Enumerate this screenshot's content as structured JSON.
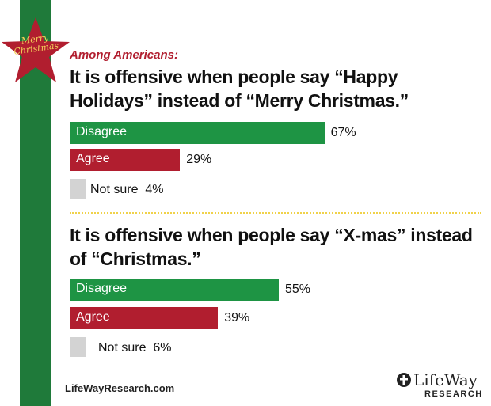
{
  "badge": {
    "line1": "Merry",
    "line2": "Christmas"
  },
  "subtitle": "Among Americans:",
  "colors": {
    "disagree": "#1e9444",
    "agree": "#b11e2f",
    "notsure": "#d3d3d3",
    "ribbon": "#1f7a3a",
    "star": "#b11e2f"
  },
  "chart_data": [
    {
      "type": "bar",
      "title": "It is offensive when people say “Happy Holidays” instead of “Merry Christmas.”",
      "categories": [
        "Disagree",
        "Agree",
        "Not sure"
      ],
      "values": [
        67,
        29,
        4
      ],
      "value_labels": [
        "67%",
        "29%",
        "4%"
      ],
      "unit": "%"
    },
    {
      "type": "bar",
      "title": "It is offensive when people say “X-mas” instead of “Christmas.”",
      "categories": [
        "Disagree",
        "Agree",
        "Not sure"
      ],
      "values": [
        55,
        39,
        6
      ],
      "value_labels": [
        "55%",
        "39%",
        "6%"
      ],
      "unit": "%"
    }
  ],
  "footer": {
    "website": "LifeWayResearch.com",
    "logo_name": "LifeWay",
    "logo_sub": "RESEARCH"
  }
}
